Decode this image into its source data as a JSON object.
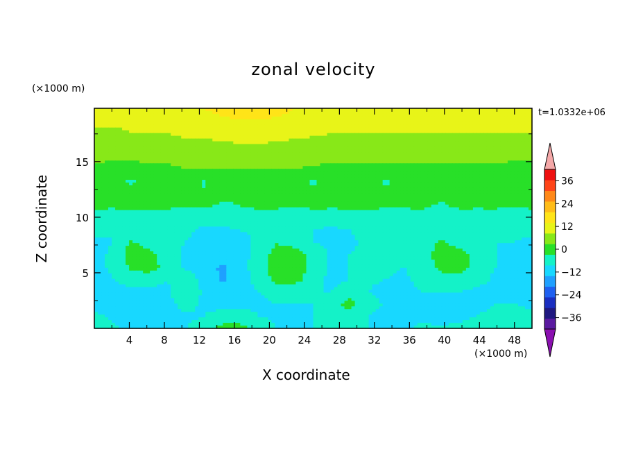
{
  "chart_data": {
    "type": "heatmap",
    "title": "zonal velocity",
    "xlabel": "X coordinate",
    "ylabel": "Z coordinate",
    "x_unit": "(×1000 m)",
    "y_unit": "(×1000 m)",
    "timestamp": "t=1.0332e+06",
    "xlim": [
      0,
      50
    ],
    "ylim": [
      0,
      19.8
    ],
    "x_ticks": [
      4,
      8,
      12,
      16,
      20,
      24,
      28,
      32,
      36,
      40,
      44,
      48
    ],
    "y_ticks": [
      5,
      10,
      15
    ],
    "colorbar": {
      "levels": [
        -42,
        -36,
        -30,
        -24,
        -18,
        -12,
        -6,
        0,
        6,
        12,
        18,
        24,
        30,
        36,
        42
      ],
      "tick_labels": [
        36,
        24,
        12,
        0,
        -12,
        -24,
        -36
      ],
      "colors": [
        "#5a1aa0",
        "#1f1880",
        "#1a2ec0",
        "#1f60f0",
        "#1fa0ff",
        "#18d8ff",
        "#14f2c8",
        "#28e028",
        "#88e818",
        "#e8f418",
        "#ffe418",
        "#ffbc18",
        "#ff8818",
        "#ff4418",
        "#ee1010"
      ],
      "over_color": "#f4a8a8",
      "under_color": "#8a10b0"
    },
    "field": {
      "description_rows_from_top": "z from 19.8 down to 0 km, x from 0 to 50 km",
      "values": [
        [
          14,
          14,
          15,
          15,
          16,
          17,
          18,
          20,
          21,
          21,
          20,
          18,
          16,
          15,
          14,
          14,
          14,
          14,
          14,
          14,
          14,
          14,
          14,
          14,
          14
        ],
        [
          13,
          13,
          13,
          14,
          14,
          15,
          16,
          17,
          18,
          18,
          17,
          16,
          15,
          14,
          13,
          13,
          13,
          13,
          13,
          13,
          13,
          13,
          13,
          13,
          13
        ],
        [
          11,
          11,
          12,
          12,
          12,
          13,
          13,
          14,
          14,
          14,
          14,
          13,
          13,
          12,
          12,
          12,
          12,
          12,
          12,
          12,
          12,
          12,
          12,
          12,
          12
        ],
        [
          9,
          9,
          9,
          10,
          10,
          11,
          11,
          11,
          12,
          12,
          11,
          11,
          10,
          10,
          10,
          10,
          10,
          10,
          10,
          10,
          10,
          10,
          10,
          10,
          10
        ],
        [
          7,
          7,
          7,
          7,
          7,
          8,
          8,
          8,
          9,
          9,
          8,
          8,
          8,
          7,
          7,
          7,
          7,
          7,
          7,
          7,
          7,
          7,
          7,
          7,
          7
        ],
        [
          5,
          4,
          4,
          5,
          5,
          6,
          6,
          6,
          6,
          6,
          6,
          6,
          5,
          5,
          5,
          5,
          5,
          5,
          5,
          5,
          5,
          5,
          5,
          4,
          4
        ],
        [
          4,
          3,
          -1,
          3,
          3,
          4,
          -1,
          4,
          4,
          3,
          4,
          3,
          -1,
          3,
          3,
          3,
          -1,
          3,
          3,
          3,
          4,
          3,
          3,
          3,
          3
        ],
        [
          2,
          2,
          2,
          2,
          1,
          1,
          1,
          2,
          1,
          1,
          2,
          2,
          2,
          1,
          1,
          2,
          2,
          2,
          2,
          2,
          2,
          2,
          1,
          2,
          2
        ],
        [
          1,
          1,
          1,
          1,
          1,
          0,
          1,
          -1,
          0,
          1,
          1,
          0,
          1,
          1,
          1,
          1,
          1,
          1,
          1,
          -1,
          1,
          1,
          1,
          0,
          1
        ],
        [
          -3,
          -4,
          -2,
          -3,
          -3,
          -3,
          -4,
          -4,
          -4,
          -3,
          -3,
          -3,
          -3,
          -4,
          -3,
          -3,
          -4,
          -4,
          -3,
          -3,
          -3,
          -4,
          -3,
          -3,
          -3
        ],
        [
          -5,
          -6,
          -5,
          -4,
          -4,
          -5,
          -7,
          -7,
          -6,
          -5,
          -4,
          -5,
          -6,
          -7,
          -6,
          -4,
          -5,
          -6,
          -4,
          -5,
          -5,
          -6,
          -6,
          -5,
          -5
        ],
        [
          -7,
          -6,
          1,
          -2,
          -5,
          -6,
          -8,
          -8,
          -8,
          -5,
          0,
          -2,
          -6,
          -7,
          -7,
          -5,
          -2,
          -5,
          -3,
          1,
          -2,
          -5,
          -6,
          -6,
          -7
        ],
        [
          -8,
          -5,
          2,
          2,
          -4,
          -7,
          -9,
          -10,
          -9,
          -3,
          2,
          3,
          -2,
          -7,
          -6,
          -4,
          -3,
          -5,
          -2,
          2,
          3,
          -2,
          -6,
          -7,
          -8
        ],
        [
          -8,
          -5,
          1,
          2,
          -1,
          -7,
          -9,
          -13,
          -9,
          -2,
          2,
          4,
          -2,
          -7,
          -6,
          -4,
          -5,
          -6,
          -3,
          1,
          3,
          -3,
          -6,
          -7,
          -8
        ],
        [
          -9,
          -6,
          -2,
          -3,
          -6,
          -2,
          -8,
          -13,
          -9,
          -4,
          2,
          2,
          -3,
          -8,
          -6,
          -5,
          -6,
          -7,
          -4,
          -2,
          -2,
          -4,
          -7,
          -8,
          -9
        ],
        [
          -10,
          -9,
          -8,
          -8,
          -7,
          -1,
          -7,
          -9,
          -8,
          -6,
          -4,
          -4,
          -6,
          -6,
          -2,
          -6,
          -8,
          -8,
          -6,
          -6,
          -6,
          -7,
          -8,
          -9,
          -9
        ],
        [
          -7,
          -9,
          -11,
          -10,
          -8,
          -4,
          -7,
          -8,
          -8,
          -7,
          -6,
          -6,
          -6,
          -2,
          2,
          -3,
          -7,
          -8,
          -7,
          -8,
          -9,
          -7,
          -6,
          -6,
          -7
        ],
        [
          -5,
          -7,
          -10,
          -9,
          -8,
          -7,
          -6,
          -4,
          -3,
          -6,
          -7,
          -7,
          -6,
          -4,
          -2,
          -6,
          -8,
          -8,
          -7,
          -9,
          -8,
          -6,
          -5,
          -4,
          -5
        ],
        [
          -3,
          -5,
          -8,
          -8,
          -7,
          -6,
          -4,
          2,
          2,
          -3,
          -6,
          -7,
          -6,
          -5,
          -4,
          -6,
          -7,
          -7,
          -5,
          -5,
          -4,
          -3,
          -2,
          -3,
          -3
        ]
      ]
    }
  }
}
